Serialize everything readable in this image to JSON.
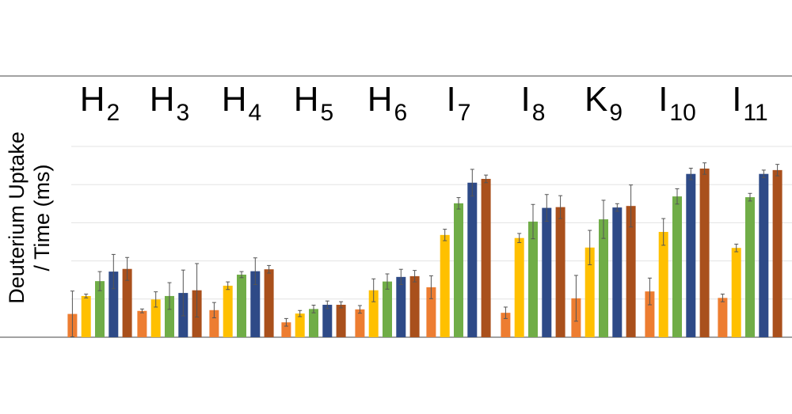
{
  "chart_data": {
    "type": "bar",
    "categories": [
      {
        "main": "H",
        "sub": "2"
      },
      {
        "main": "H",
        "sub": "3"
      },
      {
        "main": "H",
        "sub": "4"
      },
      {
        "main": "H",
        "sub": "5"
      },
      {
        "main": "H",
        "sub": "6"
      },
      {
        "main": "I",
        "sub": "7"
      },
      {
        "main": "I",
        "sub": "8"
      },
      {
        "main": "K",
        "sub": "9"
      },
      {
        "main": "I",
        "sub": "10"
      },
      {
        "main": "I",
        "sub": "11"
      }
    ],
    "ylabel_lines": [
      "Deuterium Uptake",
      "/ Time (ms)"
    ],
    "ylim": [
      0,
      5
    ],
    "grid": true,
    "colors": [
      "#ED7D31",
      "#FFC000",
      "#70AD47",
      "#2E4A87",
      "#A9501C"
    ],
    "series": [
      {
        "values": [
          0.61,
          0.69,
          0.71,
          0.39,
          0.73,
          1.31,
          0.64,
          1.02,
          1.2,
          1.03
        ],
        "errors": [
          0.6,
          0.05,
          0.2,
          0.1,
          0.1,
          0.3,
          0.15,
          0.6,
          0.35,
          0.1
        ]
      },
      {
        "values": [
          1.08,
          0.99,
          1.35,
          0.62,
          1.23,
          2.68,
          2.6,
          2.35,
          2.76,
          2.34
        ],
        "errors": [
          0.05,
          0.2,
          0.1,
          0.08,
          0.3,
          0.15,
          0.12,
          0.45,
          0.35,
          0.1
        ]
      },
      {
        "values": [
          1.47,
          1.08,
          1.64,
          0.74,
          1.46,
          3.51,
          3.03,
          3.09,
          3.69,
          3.67
        ],
        "errors": [
          0.25,
          0.35,
          0.08,
          0.1,
          0.2,
          0.15,
          0.45,
          0.5,
          0.2,
          0.1
        ]
      },
      {
        "values": [
          1.72,
          1.16,
          1.73,
          0.85,
          1.58,
          4.05,
          3.39,
          3.4,
          4.28,
          4.28
        ],
        "errors": [
          0.45,
          0.6,
          0.35,
          0.1,
          0.2,
          0.35,
          0.35,
          0.1,
          0.15,
          0.1
        ]
      },
      {
        "values": [
          1.79,
          1.23,
          1.78,
          0.85,
          1.6,
          4.15,
          3.41,
          3.44,
          4.42,
          4.38
        ],
        "errors": [
          0.3,
          0.7,
          0.1,
          0.08,
          0.15,
          0.1,
          0.3,
          0.55,
          0.15,
          0.15
        ]
      }
    ]
  }
}
